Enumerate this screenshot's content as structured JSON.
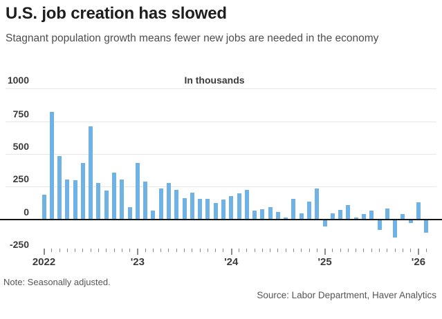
{
  "header": {
    "title": "U.S. job creation has slowed",
    "subtitle": "Stagnant population growth means fewer new jobs are needed in the economy"
  },
  "chart": {
    "top_axis_label": "1000",
    "unit_label": "In thousands"
  },
  "chart_data": {
    "type": "bar",
    "title": "U.S. job creation has slowed",
    "unit": "In thousands",
    "bar_color": "#6FB2E5",
    "ylim": [
      -250,
      1000
    ],
    "yticks": [
      1000,
      750,
      500,
      250,
      0,
      -250
    ],
    "grid": "horizontal",
    "x": [
      "Jan 2022",
      "Feb 2022",
      "Mar 2022",
      "Apr 2022",
      "May 2022",
      "Jun 2022",
      "Jul 2022",
      "Aug 2022",
      "Sep 2022",
      "Oct 2022",
      "Nov 2022",
      "Dec 2022",
      "Jan 2023",
      "Feb 2023",
      "Mar 2023",
      "Apr 2023",
      "May 2023",
      "Jun 2023",
      "Jul 2023",
      "Aug 2023",
      "Sep 2023",
      "Oct 2023",
      "Nov 2023",
      "Dec 2023",
      "Jan 2024",
      "Feb 2024",
      "Mar 2024",
      "Apr 2024",
      "May 2024",
      "Jun 2024",
      "Jul 2024",
      "Aug 2024",
      "Sep 2024",
      "Oct 2024",
      "Nov 2024",
      "Dec 2024",
      "Jan 2025",
      "Feb 2025",
      "Mar 2025",
      "Apr 2025",
      "May 2025",
      "Jun 2025",
      "Jul 2025",
      "Aug 2025",
      "Sep 2025",
      "Oct 2025",
      "Nov 2025",
      "Dec 2025",
      "Jan 2026",
      "Feb 2026"
    ],
    "values": [
      190,
      820,
      485,
      305,
      300,
      430,
      710,
      280,
      220,
      355,
      305,
      95,
      430,
      290,
      65,
      235,
      275,
      225,
      160,
      205,
      155,
      155,
      125,
      150,
      175,
      200,
      225,
      65,
      75,
      90,
      55,
      15,
      155,
      45,
      135,
      235,
      -50,
      45,
      70,
      110,
      15,
      40,
      65,
      -75,
      80,
      -135,
      40,
      -25,
      130,
      -100
    ],
    "xtick_year_labels": [
      "2022",
      "'23",
      "'24",
      "'25",
      "'26"
    ]
  },
  "footer": {
    "note": "Note: Seasonally adjusted.",
    "source": "Source: Labor Department, Haver Analytics"
  }
}
